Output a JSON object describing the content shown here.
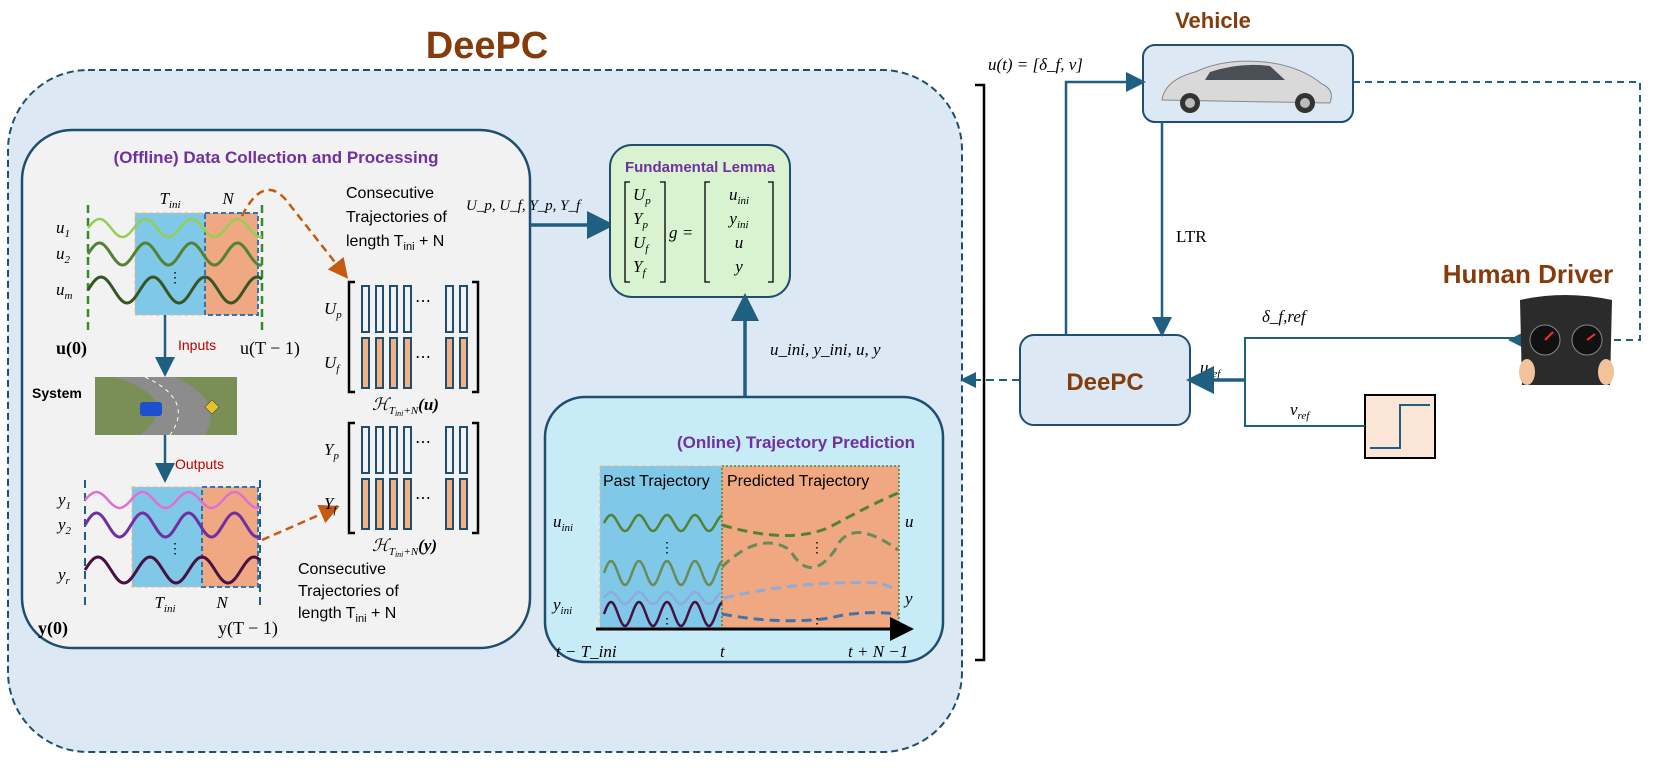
{
  "title": "DeePC",
  "colors": {
    "brand_brown": "#843c0c",
    "heading_purple": "#7030a0",
    "arrow_blue": "#1f5f80",
    "past_blue": "#7fc8e8",
    "future_orange": "#f0a883",
    "dashed_orange": "#c55a11"
  },
  "offline": {
    "title": "(Offline) Data Collection and Processing",
    "inputs": {
      "labels": [
        "u",
        "u",
        "u"
      ],
      "subs": [
        "1",
        "2",
        "m"
      ],
      "tini": "T",
      "tini_sub": "ini",
      "n": "N",
      "start": "u(0)",
      "end": "u(T − 1)",
      "arrow_label": "Inputs"
    },
    "system_label": "System",
    "outputs": {
      "labels": [
        "y",
        "y",
        "y"
      ],
      "subs": [
        "1",
        "2",
        "r"
      ],
      "tini": "T",
      "tini_sub": "ini",
      "n": "N",
      "start": "y(0)",
      "end": "y(T − 1)",
      "arrow_label": "Outputs"
    },
    "consec_u": [
      "Consecutive",
      "Trajectories of",
      "length T",
      "ini",
      " + N"
    ],
    "consec_y": [
      "Consecutive",
      "Trajectories of",
      "length T",
      "ini",
      " + N"
    ],
    "hankel_u": {
      "rows": [
        "U",
        "U"
      ],
      "row_subs": [
        "p",
        "f"
      ],
      "name": "ℋ",
      "sub": "T",
      "subsub": "ini",
      "subtail": "+N",
      "arg": "(u)"
    },
    "hankel_y": {
      "rows": [
        "Y",
        "Y"
      ],
      "row_subs": [
        "p",
        "f"
      ],
      "name": "ℋ",
      "sub": "T",
      "subsub": "ini",
      "subtail": "+N",
      "arg": "(y)"
    },
    "ellipsis": "⋯"
  },
  "to_lemma_label": "U_p, U_f, Y_p, Y_f",
  "lemma": {
    "title": "Fundamental Lemma",
    "lhs": [
      "U_p",
      "Y_p",
      "U_f",
      "Y_f"
    ],
    "g": "g =",
    "rhs": [
      "u_ini",
      "y_ini",
      "u",
      "y"
    ]
  },
  "online_to_lemma_label": "u_ini, y_ini, u, y",
  "online": {
    "title": "(Online) Trajectory Prediction",
    "past": "Past Trajectory",
    "predicted": "Predicted Trajectory",
    "u_ini": "u_ini",
    "y_ini": "y_ini",
    "u": "u",
    "y": "y",
    "t_start": "t − T_ini",
    "t": "t",
    "t_end": "t + N −1"
  },
  "loop": {
    "control_label": "u(t) = [δ_f, v]",
    "vehicle_title": "Vehicle",
    "ltr_label": "LTR",
    "deepc_label": "DeePC",
    "driver_title": "Human Driver",
    "delta_ref": "δ_f,ref",
    "u_ref": "u_ref",
    "v_ref": "v_ref"
  }
}
